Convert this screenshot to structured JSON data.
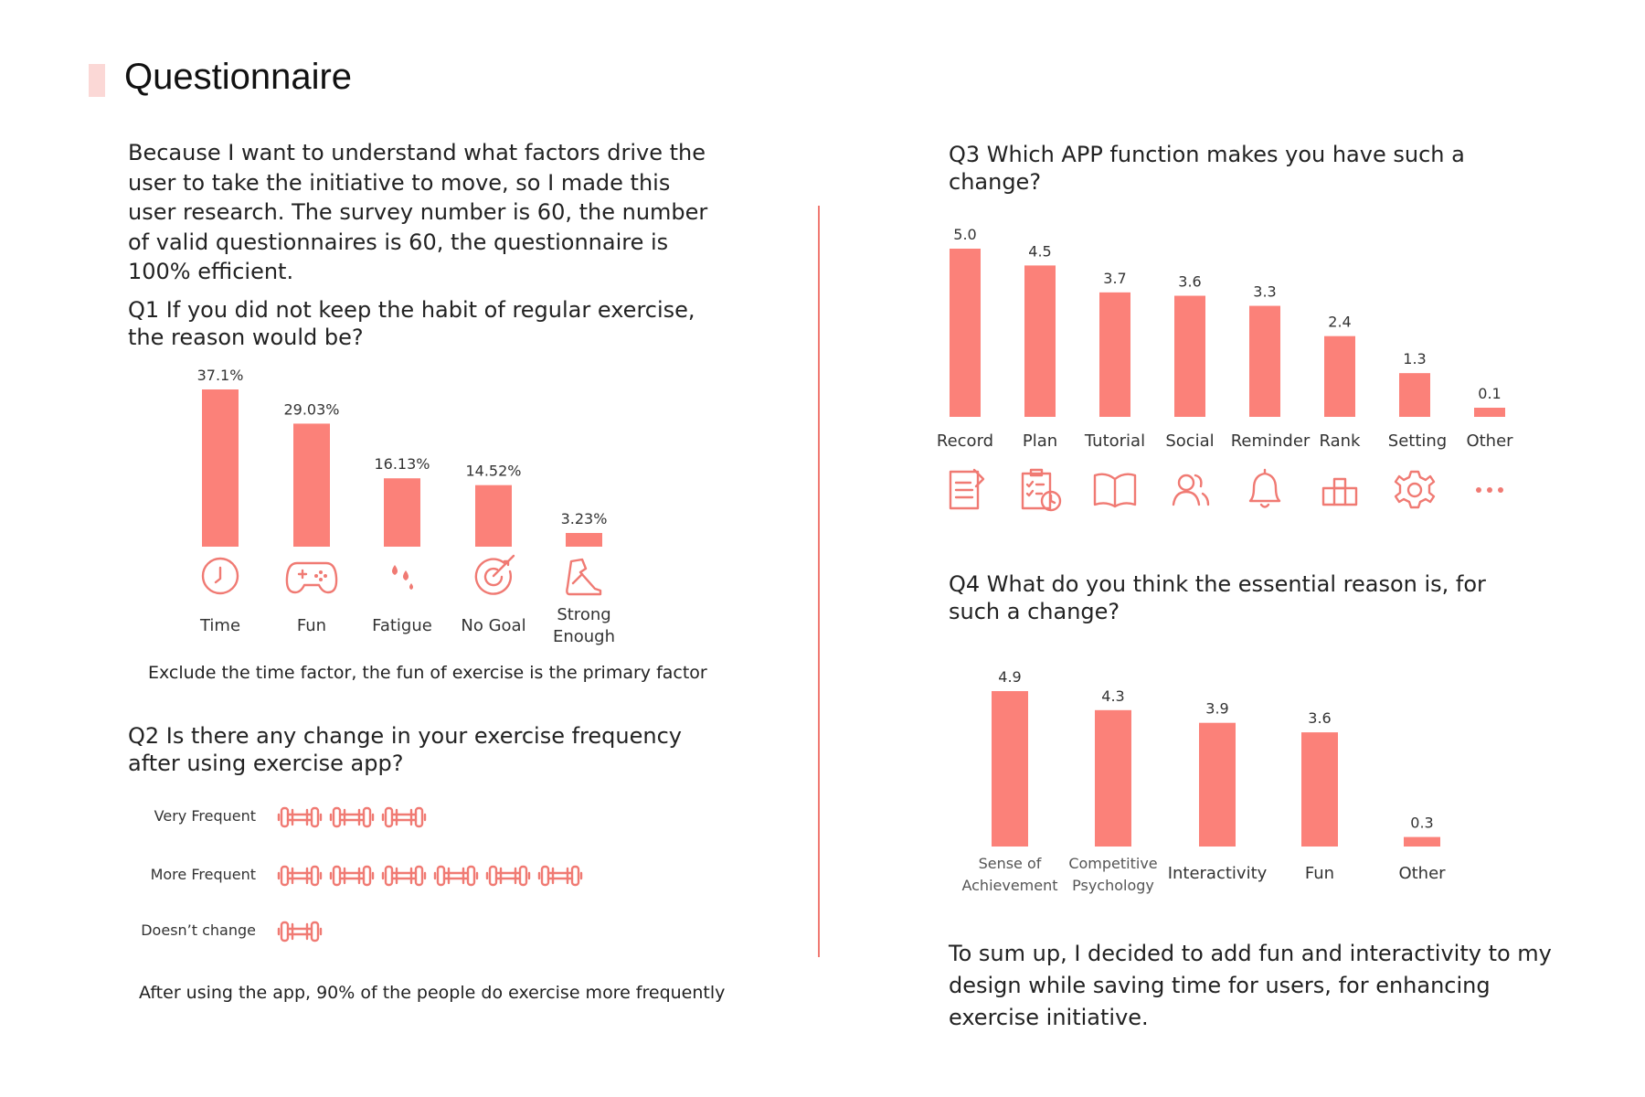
{
  "page": {
    "title": "Questionnaire",
    "intro": "Because I want to understand what factors drive the user to take the initiative to move, so I made this user research. The survey number is 60, the number of valid questionnaires is 60, the questionnaire is 100% efficient.",
    "accent_color": "#fb8179",
    "conclusion": "To sum up, I decided to add fun and interactivity to my design while saving time for users, for enhancing exercise initiative."
  },
  "q1": {
    "question": "Q1 If you did not keep the habit of regular exercise, the reason would be?",
    "note": "Exclude the time factor, the fun of exercise is the primary factor",
    "icons": [
      "clock-icon",
      "gamepad-icon",
      "sweat-drops-icon",
      "target-icon",
      "running-shoe-icon"
    ]
  },
  "q2": {
    "question": "Q2 Is there any change in your exercise frequency after using exercise app?",
    "note": "After using the app, 90% of the people do exercise more frequently",
    "icon": "dumbbell-icon",
    "rows": [
      {
        "label": "Very Frequent",
        "count": 3
      },
      {
        "label": "More Frequent",
        "count": 6
      },
      {
        "label": "Doesn’t change",
        "count": 1
      }
    ]
  },
  "q3": {
    "question": "Q3 Which APP function makes you have such a change?",
    "icons": [
      "document-icon",
      "checklist-clock-icon",
      "book-icon",
      "people-icon",
      "bell-icon",
      "podium-icon",
      "gear-icon",
      "more-dots-icon"
    ]
  },
  "q4": {
    "question": "Q4 What do you think the essential reason is, for such a change?"
  },
  "chart_data": [
    {
      "type": "bar",
      "categories": [
        "Time",
        "Fun",
        "Fatigue",
        "No Goal",
        "Strong Enough"
      ],
      "values": [
        37.1,
        29.03,
        16.13,
        14.52,
        3.23
      ],
      "value_labels": [
        "37.1%",
        "29.03%",
        "16.13%",
        "14.52%",
        "3.23%"
      ],
      "title": "",
      "xlabel": "",
      "ylabel": "",
      "ylim": [
        0,
        37.1
      ]
    },
    {
      "type": "bar",
      "categories": [
        "Record",
        "Plan",
        "Tutorial",
        "Social",
        "Reminder",
        "Rank",
        "Setting",
        "Other"
      ],
      "values": [
        5.0,
        4.5,
        3.7,
        3.6,
        3.3,
        2.4,
        1.3,
        0.1
      ],
      "value_labels": [
        "5.0",
        "4.5",
        "3.7",
        "3.6",
        "3.3",
        "2.4",
        "1.3",
        "0.1"
      ],
      "title": "",
      "xlabel": "",
      "ylabel": "",
      "ylim": [
        0,
        5.0
      ]
    },
    {
      "type": "bar",
      "categories": [
        "Sense of Achievement",
        "Competitive Psychology",
        "Interactivity",
        "Fun",
        "Other"
      ],
      "values": [
        4.9,
        4.3,
        3.9,
        3.6,
        0.3
      ],
      "value_labels": [
        "4.9",
        "4.3",
        "3.9",
        "3.6",
        "0.3"
      ],
      "title": "",
      "xlabel": "",
      "ylabel": "",
      "ylim": [
        0,
        4.9
      ]
    }
  ]
}
